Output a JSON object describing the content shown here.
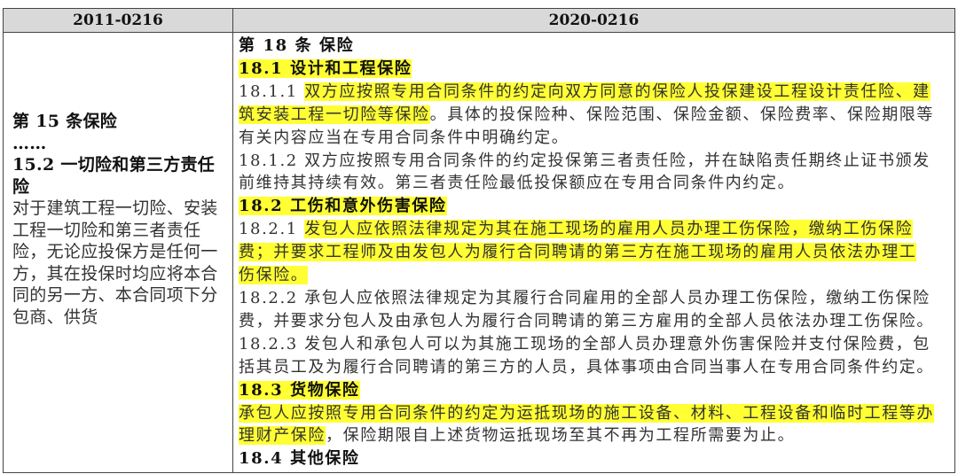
{
  "headers": [
    "2011-0216",
    "2020-0216"
  ],
  "highlight_color": "#ffff33",
  "left_lines": [
    {
      "bold": true,
      "text": "第 15 条保险"
    },
    {
      "bold": true,
      "text": "……"
    },
    {
      "bold": true,
      "text": "15.2 一切险和第三方责任"
    },
    {
      "bold": true,
      "text": "险"
    },
    {
      "bold": false,
      "text": "对于建筑工程一切险、安装"
    },
    {
      "bold": false,
      "text": "工程一切险和第三者责任"
    },
    {
      "bold": false,
      "text": "险，无论应投保方是任何一"
    },
    {
      "bold": false,
      "text": "方，其在投保时均应将本合"
    },
    {
      "bold": false,
      "text": "同的另一方、本合同项下分"
    },
    {
      "bold": false,
      "text": "包商、供货"
    }
  ],
  "right_lines": [
    {
      "bold": true,
      "segments": [
        {
          "text": "第 18 条 保险",
          "hl": false
        }
      ]
    },
    {
      "bold": true,
      "segments": [
        {
          "text": "18.1 设计和工程保险",
          "hl": true
        }
      ]
    },
    {
      "bold": false,
      "segments": [
        {
          "text": "18.1.1 ",
          "hl": false
        },
        {
          "text": "双方应按照专用合同条件的约定向双方同意的保险人投保建设工程设计责任险、建",
          "hl": true
        }
      ]
    },
    {
      "bold": false,
      "segments": [
        {
          "text": "筑安装工程一切险等保险",
          "hl": true
        },
        {
          "text": "。具体的投保险种、保险范围、保险金额、保险费率、保险期限等",
          "hl": false
        }
      ]
    },
    {
      "bold": false,
      "segments": [
        {
          "text": "有关内容应当在专用合同条件中明确约定。",
          "hl": false
        }
      ]
    },
    {
      "bold": false,
      "segments": [
        {
          "text": "18.1.2 双方应按照专用合同条件的约定投保第三者责任险，并在缺陷责任期终止证书颁发",
          "hl": false
        }
      ]
    },
    {
      "bold": false,
      "segments": [
        {
          "text": "前维持其持续有效。第三者责任险最低投保额应在专用合同条件内约定。",
          "hl": false
        }
      ]
    },
    {
      "bold": true,
      "segments": [
        {
          "text": "18.2 工伤和意外伤害保险",
          "hl": true
        }
      ]
    },
    {
      "bold": false,
      "segments": [
        {
          "text": "18.2.1 ",
          "hl": false
        },
        {
          "text": "发包人应依照法律规定为其在施工现场的雇用人员办理工伤保险，缴纳工伤保险",
          "hl": true
        }
      ]
    },
    {
      "bold": false,
      "segments": [
        {
          "text": "费；并要求工程师及由发包人为履行合同聘请的第三方在施工现场的雇用人员依法办理工",
          "hl": true
        }
      ]
    },
    {
      "bold": false,
      "segments": [
        {
          "text": "伤保险。",
          "hl": true
        }
      ]
    },
    {
      "bold": false,
      "segments": [
        {
          "text": "18.2.2 承包人应依照法律规定为其履行合同雇用的全部人员办理工伤保险，缴纳工伤保险",
          "hl": false
        }
      ]
    },
    {
      "bold": false,
      "segments": [
        {
          "text": "费，并要求分包人及由承包人为履行合同聘请的第三方雇用的全部人员依法办理工伤保险。",
          "hl": false
        }
      ]
    },
    {
      "bold": false,
      "segments": [
        {
          "text": "18.2.3 发包人和承包人可以为其施工现场的全部人员办理意外伤害保险并支付保险费，包",
          "hl": false
        }
      ]
    },
    {
      "bold": false,
      "segments": [
        {
          "text": "括其员工及为履行合同聘请的第三方的人员，具体事项由合同当事人在专用合同条件约定。",
          "hl": false
        }
      ]
    },
    {
      "bold": true,
      "segments": [
        {
          "text": "18.3 货物保险",
          "hl": true
        }
      ]
    },
    {
      "bold": false,
      "segments": [
        {
          "text": "承包人应按照专用合同条件的约定为运抵现场的施工设备、材料、工程设备和临时工程等办",
          "hl": true
        }
      ]
    },
    {
      "bold": false,
      "segments": [
        {
          "text": "理财产保险",
          "hl": true
        },
        {
          "text": "，保险期限自上述货物运抵现场至其不再为工程所需要为止。",
          "hl": false
        }
      ]
    },
    {
      "bold": true,
      "segments": [
        {
          "text": "18.4 其他保险",
          "hl": false
        }
      ]
    }
  ]
}
